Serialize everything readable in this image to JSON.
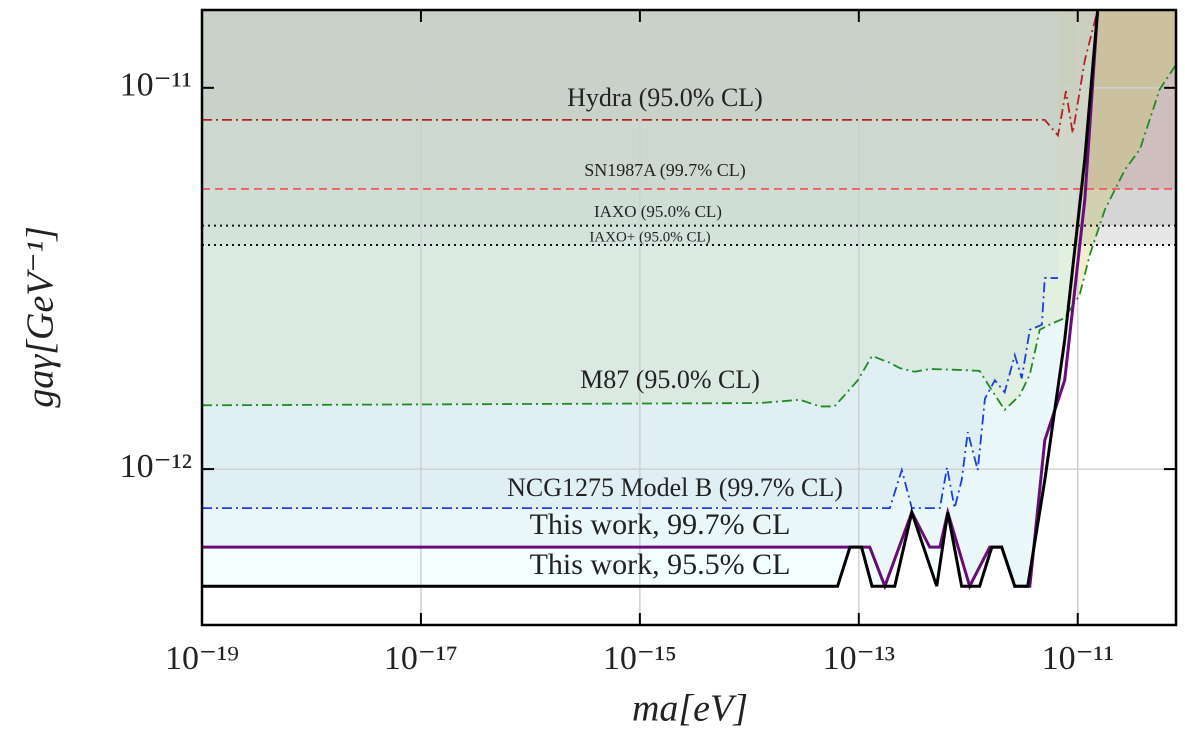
{
  "chart_data": {
    "type": "line",
    "x_label": "ma[eV]",
    "y_label": "gaγ[GeV⁻¹]",
    "xscale": "log",
    "yscale": "log",
    "grid": true,
    "xlim": [
      1e-19,
      7.9e-11
    ],
    "ylim": [
      3.9e-13,
      1.6e-11
    ],
    "xticks": [
      {
        "value": 1e-19,
        "label": "10⁻¹⁹"
      },
      {
        "value": 1e-17,
        "label": "10⁻¹⁷"
      },
      {
        "value": 1e-15,
        "label": "10⁻¹⁵"
      },
      {
        "value": 1e-13,
        "label": "10⁻¹³"
      },
      {
        "value": 1e-11,
        "label": "10⁻¹¹"
      }
    ],
    "yticks": [
      {
        "value": 1e-12,
        "label": "10⁻¹²"
      },
      {
        "value": 1e-11,
        "label": "10⁻¹¹"
      }
    ],
    "series": [
      {
        "name": "Hydra (95.0% CL)",
        "color": "#b22222",
        "fill": "#8b4513",
        "linestyle": "dashdot",
        "x": [
          1e-19,
          5e-12,
          6.6e-12,
          7.8e-12,
          9e-12,
          1.16e-11,
          1.52e-11
        ],
        "values": [
          8.24e-12,
          8.24e-12,
          7.5e-12,
          9.8e-12,
          7.6e-12,
          1.18e-11,
          1.6e-11
        ]
      },
      {
        "name": "SN1987A (99.7% CL)",
        "color": "#f06060",
        "fill": "#cd5c5c",
        "linestyle": "dashed",
        "x": [
          1e-19,
          7.9e-11
        ],
        "values": [
          5.43e-12,
          5.43e-12
        ]
      },
      {
        "name": "IAXO (95.0% CL)",
        "color": "#111111",
        "fill": "#a9a9a9",
        "linestyle": "dotted",
        "x": [
          1e-19,
          7.9e-11
        ],
        "values": [
          4.35e-12,
          4.35e-12
        ]
      },
      {
        "name": "IAXO+ (95.0% CL)",
        "color": "#111111",
        "fill": "#a9a9a9",
        "linestyle": "dotted",
        "x": [
          1e-19,
          7.9e-11
        ],
        "values": [
          3.87e-12,
          3.87e-12
        ]
      },
      {
        "name": "M87 (95.0% CL)",
        "color": "#228b22",
        "fill": "#c8c850",
        "linestyle": "dashdot",
        "x": [
          1e-19,
          1.25e-14,
          2.9e-14,
          4.4e-14,
          6e-14,
          9.8e-14,
          1.32e-13,
          1.92e-13,
          2.37e-13,
          3.24e-13,
          4.45e-13,
          8.4e-13,
          1.27e-12,
          1.64e-12,
          2.15e-12,
          2.95e-12,
          3.65e-12,
          4.5e-12,
          5.5e-12,
          7.6e-12,
          1.04e-11,
          1.29e-11,
          1.77e-11,
          2.7e-11,
          3.7e-11,
          5.6e-11,
          7.9e-11
        ],
        "values": [
          1.47e-12,
          1.49e-12,
          1.52e-12,
          1.46e-12,
          1.46e-12,
          1.71e-12,
          1.98e-12,
          1.9e-12,
          1.84e-12,
          1.8e-12,
          1.83e-12,
          1.82e-12,
          1.81e-12,
          1.61e-12,
          1.43e-12,
          1.56e-12,
          1.77e-12,
          2.32e-12,
          2.39e-12,
          2.49e-12,
          2.86e-12,
          3.65e-12,
          4.79e-12,
          6.1e-12,
          6.9e-12,
          9.9e-12,
          1.15e-11
        ]
      },
      {
        "name": "NCG1275 Model B (99.7% CL)",
        "color": "#1a3ee0",
        "fill": "#b8c4d4",
        "linestyle": "dashdot",
        "x": [
          1e-19,
          1.92e-13,
          2.47e-13,
          3.05e-13,
          5.5e-13,
          6.4e-13,
          7.5e-13,
          8.7e-13,
          9.9e-13,
          1.22e-12,
          1.42e-12,
          1.75e-12,
          2.15e-12,
          2.66e-12,
          3.08e-12,
          3.65e-12,
          4.7e-12,
          5e-12,
          6.6e-12
        ],
        "values": [
          7.9e-13,
          7.9e-13,
          9.94e-13,
          7.9e-13,
          7.9e-13,
          1.01e-12,
          7.9e-13,
          9.35e-13,
          1.25e-12,
          9.94e-13,
          1.53e-12,
          1.71e-12,
          1.59e-12,
          1.99e-12,
          1.73e-12,
          2.32e-12,
          2.39e-12,
          3.17e-12,
          3.17e-12
        ]
      },
      {
        "name": "This work, 99.7% CL",
        "color": "#6a0d7a",
        "fill": "#d0dce8",
        "linestyle": "solid",
        "x": [
          1e-19,
          1.26e-13,
          1.73e-13,
          3.05e-13,
          4.45e-13,
          5.5e-13,
          6.5e-13,
          1.03e-12,
          1.57e-12,
          2.02e-12,
          2.66e-12,
          3.65e-12,
          5e-12,
          7.6e-12,
          1.16e-11,
          1.52e-11
        ],
        "values": [
          6.24e-13,
          6.24e-13,
          4.93e-13,
          7.7e-13,
          6.24e-13,
          6.24e-13,
          7.7e-13,
          4.93e-13,
          6.24e-13,
          6.24e-13,
          4.93e-13,
          4.93e-13,
          1.19e-12,
          1.71e-12,
          5.08e-12,
          1.6e-11
        ]
      },
      {
        "name": "This work, 95.5% CL",
        "color": "#000000",
        "fill": "#d8ffff",
        "linestyle": "solid",
        "x": [
          1e-19,
          6.4e-14,
          8.3e-14,
          1.06e-13,
          1.32e-13,
          2.13e-13,
          3.05e-13,
          5.15e-13,
          6.5e-13,
          8.7e-13,
          1.27e-12,
          1.64e-12,
          2.02e-12,
          2.66e-12,
          3.49e-12,
          5e-12,
          7.6e-12,
          1.16e-11,
          1.52e-11
        ],
        "values": [
          4.93e-13,
          4.93e-13,
          6.24e-13,
          6.24e-13,
          4.93e-13,
          4.93e-13,
          7.7e-13,
          4.93e-13,
          7.7e-13,
          4.93e-13,
          4.93e-13,
          6.24e-13,
          6.24e-13,
          4.93e-13,
          4.93e-13,
          9.35e-13,
          2.18e-12,
          6.5e-12,
          1.6e-11
        ]
      }
    ]
  }
}
